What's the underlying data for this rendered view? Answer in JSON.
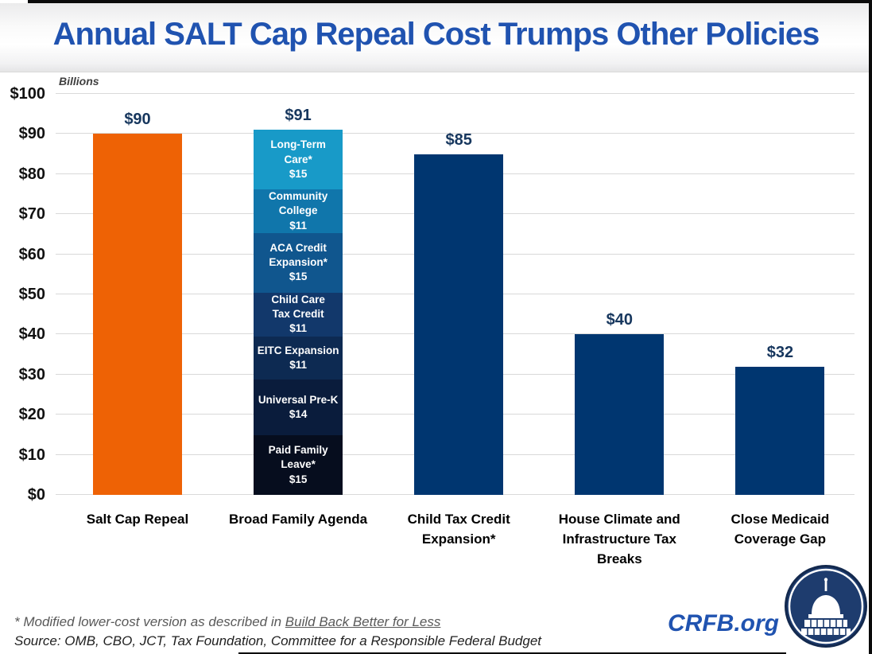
{
  "title": "Annual SALT Cap Repeal Cost Trumps Other Policies",
  "colors": {
    "title_blue": "#2053B0",
    "value_label_navy": "#17375E",
    "gridline": "#D9D9D9",
    "orange": "#EE6205",
    "navy_bar": "#003670"
  },
  "chart_data": {
    "type": "bar",
    "title": "Annual SALT Cap Repeal Cost Trumps Other Policies",
    "unit_label": "Billions",
    "xlabel": "",
    "ylabel": "Billions",
    "ylim": [
      0,
      100
    ],
    "grid": true,
    "ytick_values": [
      0,
      10,
      20,
      30,
      40,
      50,
      60,
      70,
      80,
      90,
      100
    ],
    "ytick_labels": [
      "$0",
      "$10",
      "$20",
      "$30",
      "$40",
      "$50",
      "$60",
      "$70",
      "$80",
      "$90",
      "$100"
    ],
    "categories": [
      "Salt Cap Repeal",
      "Broad Family Agenda",
      "Child Tax Credit Expansion*",
      "House Climate and Infrastructure Tax Breaks",
      "Close Medicaid Coverage Gap"
    ],
    "bars": [
      {
        "label": "Salt Cap Repeal",
        "label_lines": [
          "Salt Cap Repeal"
        ],
        "value": 90,
        "total_label": "$90",
        "color": "#EE6205"
      },
      {
        "label": "Broad Family Agenda",
        "label_lines": [
          "Broad Family Agenda"
        ],
        "value": 91,
        "total_label": "$91",
        "segments": [
          {
            "name": "Long-Term Care*",
            "name_lines": [
              "Long-Term",
              "Care*"
            ],
            "value": 15,
            "value_label": "$15",
            "color": "#189AC8"
          },
          {
            "name": "Community College",
            "name_lines": [
              "Community",
              "College"
            ],
            "value": 11,
            "value_label": "$11",
            "color": "#1076AB"
          },
          {
            "name": "ACA Credit Expansion*",
            "name_lines": [
              "ACA Credit",
              "Expansion*"
            ],
            "value": 15,
            "value_label": "$15",
            "color": "#10568E"
          },
          {
            "name": "Child Care Tax Credit",
            "name_lines": [
              "Child Care",
              "Tax Credit"
            ],
            "value": 11,
            "value_label": "$11",
            "color": "#12386B"
          },
          {
            "name": "EITC Expansion",
            "name_lines": [
              "EITC Expansion"
            ],
            "value": 11,
            "value_label": "$11",
            "color": "#0D2A52"
          },
          {
            "name": "Universal Pre-K",
            "name_lines": [
              "Universal Pre-K"
            ],
            "value": 14,
            "value_label": "$14",
            "color": "#0A1C3C"
          },
          {
            "name": "Paid Family Leave*",
            "name_lines": [
              "Paid Family",
              "Leave*"
            ],
            "value": 15,
            "value_label": "$15",
            "color": "#060D1E"
          }
        ]
      },
      {
        "label": "Child Tax Credit Expansion*",
        "label_lines": [
          "Child Tax Credit",
          "Expansion*"
        ],
        "value": 85,
        "total_label": "$85",
        "color": "#003670"
      },
      {
        "label": "House Climate and Infrastructure Tax Breaks",
        "label_lines": [
          "House Climate and",
          "Infrastructure Tax",
          "Breaks"
        ],
        "value": 40,
        "total_label": "$40",
        "color": "#003670"
      },
      {
        "label": "Close Medicaid Coverage Gap",
        "label_lines": [
          "Close Medicaid",
          "Coverage Gap"
        ],
        "value": 32,
        "total_label": "$32",
        "color": "#003670"
      }
    ]
  },
  "footer": {
    "note_prefix": "* Modified lower-cost version as described in ",
    "note_link": "Build Back Better for Less",
    "source": "Source: OMB, CBO, JCT, Tax Foundation, Committee for a Responsible Federal Budget"
  },
  "branding": {
    "site": "CRFB.org",
    "logo_icon": "capitol-building-icon"
  }
}
